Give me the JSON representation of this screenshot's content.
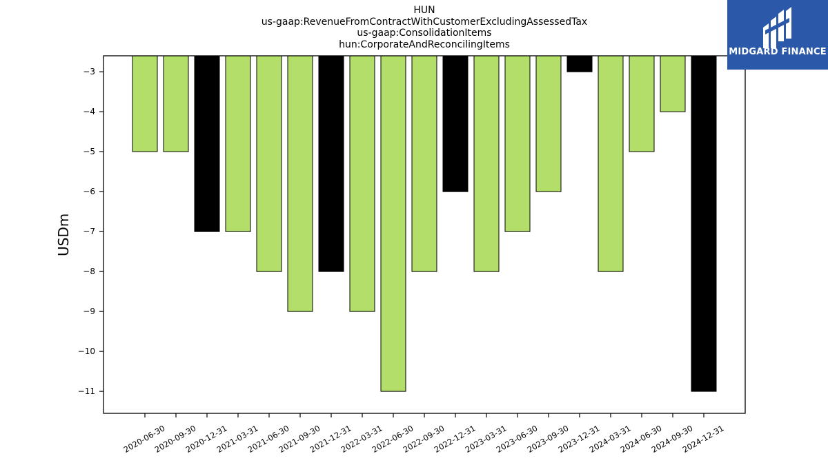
{
  "title_lines": [
    "HUN",
    "us-gaap:RevenueFromContractWithCustomerExcludingAssessedTax",
    "us-gaap:ConsolidationItems",
    "hun:CorporateAndReconcilingItems"
  ],
  "logo": {
    "text": "MIDGARD FINANCE",
    "icon": "midgard-m-logo-icon",
    "background": "#2b58a8"
  },
  "chart_data": {
    "type": "bar",
    "title": "HUN\nus-gaap:RevenueFromContractWithCustomerExcludingAssessedTax\nus-gaap:ConsolidationItems\nhun:CorporateAndReconcilingItems",
    "xlabel": "",
    "ylabel": "USDm",
    "categories": [
      "2020-06-30",
      "2020-09-30",
      "2020-12-31",
      "2021-03-31",
      "2021-06-30",
      "2021-09-30",
      "2021-12-31",
      "2022-03-31",
      "2022-06-30",
      "2022-09-30",
      "2022-12-31",
      "2023-03-31",
      "2023-06-30",
      "2023-09-30",
      "2023-12-31",
      "2024-03-31",
      "2024-06-30",
      "2024-09-30",
      "2024-12-31"
    ],
    "values": [
      -5,
      -5,
      -7,
      -7,
      -8,
      -9,
      -8,
      -9,
      -11,
      -8,
      -6,
      -8,
      -7,
      -6,
      -3,
      -8,
      -5,
      -4,
      -11
    ],
    "bar_colors": [
      "#b3de69",
      "#b3de69",
      "#000000",
      "#b3de69",
      "#b3de69",
      "#b3de69",
      "#000000",
      "#b3de69",
      "#b3de69",
      "#b3de69",
      "#000000",
      "#b3de69",
      "#b3de69",
      "#b3de69",
      "#000000",
      "#b3de69",
      "#b3de69",
      "#b3de69",
      "#000000"
    ],
    "ylim": [
      -11.55,
      -2.6
    ],
    "yticks": [
      -3,
      -4,
      -5,
      -6,
      -7,
      -8,
      -9,
      -10,
      -11
    ],
    "grid": false,
    "legend": "none"
  }
}
